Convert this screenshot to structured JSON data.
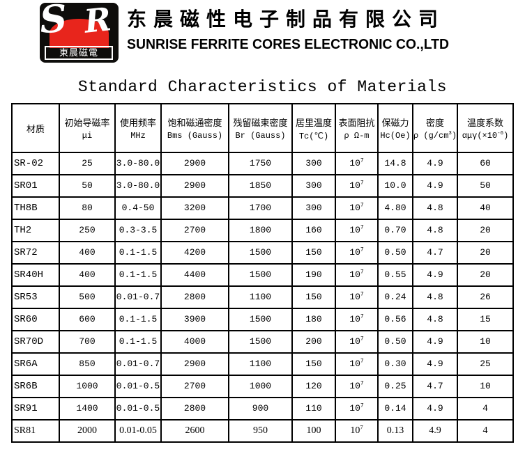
{
  "header": {
    "logo": {
      "letter_s": "S",
      "letter_r": "R",
      "caption": "東晨磁電",
      "background_color": "#0e0d0b",
      "dome_color": "#e8251c"
    },
    "company_zh": "东晨磁性电子制品有限公司",
    "company_en": "SUNRISE FERRITE CORES ELECTRONIC CO.,LTD"
  },
  "title": "Standard Characteristics of Materials",
  "table": {
    "columns": [
      {
        "zh": "材质",
        "unit": ""
      },
      {
        "zh": "初始导磁率",
        "unit": "μi"
      },
      {
        "zh": "使用频率",
        "unit": "MHz"
      },
      {
        "zh": "饱和磁通密度",
        "unit": "Bms (Gauss)"
      },
      {
        "zh": "残留磁束密度",
        "unit": "Br (Gauss)"
      },
      {
        "zh": "居里温度",
        "unit": "Tc(℃)"
      },
      {
        "zh": "表面阻抗",
        "unit": "ρ Ω-m"
      },
      {
        "zh": "保磁力",
        "unit": "Hc(Oe)"
      },
      {
        "zh": "密度",
        "unit": "ρ (g/cm^{3})"
      },
      {
        "zh": "温度系数",
        "unit": "αμγ(×10^{-6})"
      }
    ],
    "rows": [
      [
        "SR-02",
        "25",
        "3.0-80.0",
        "2900",
        "1750",
        "300",
        "10^{7}",
        "14.8",
        "4.9",
        "60"
      ],
      [
        "SR01",
        "50",
        "3.0-80.0",
        "2900",
        "1850",
        "300",
        "10^{7}",
        "10.0",
        "4.9",
        "50"
      ],
      [
        "TH8B",
        "80",
        "0.4-50",
        "3200",
        "1700",
        "300",
        "10^{7}",
        "4.80",
        "4.8",
        "40"
      ],
      [
        "TH2",
        "250",
        "0.3-3.5",
        "2700",
        "1800",
        "160",
        "10^{7}",
        "0.70",
        "4.8",
        "20"
      ],
      [
        "SR72",
        "400",
        "0.1-1.5",
        "4200",
        "1500",
        "150",
        "10^{7}",
        "0.50",
        "4.7",
        "20"
      ],
      [
        "SR40H",
        "400",
        "0.1-1.5",
        "4400",
        "1500",
        "190",
        "10^{7}",
        "0.55",
        "4.9",
        "20"
      ],
      [
        "SR53",
        "500",
        "0.01-0.7",
        "2800",
        "1100",
        "150",
        "10^{7}",
        "0.24",
        "4.8",
        "26"
      ],
      [
        "SR60",
        "600",
        "0.1-1.5",
        "3900",
        "1500",
        "180",
        "10^{7}",
        "0.56",
        "4.8",
        "15"
      ],
      [
        "SR70D",
        "700",
        "0.1-1.5",
        "4000",
        "1500",
        "200",
        "10^{7}",
        "0.50",
        "4.9",
        "10"
      ],
      [
        "SR6A",
        "850",
        "0.01-0.7",
        "2900",
        "1100",
        "150",
        "10^{7}",
        "0.30",
        "4.9",
        "25"
      ],
      [
        "SR6B",
        "1000",
        "0.01-0.5",
        "2700",
        "1000",
        "120",
        "10^{7}",
        "0.25",
        "4.7",
        "10"
      ],
      [
        "SR91",
        "1400",
        "0.01-0.5",
        "2800",
        "900",
        "110",
        "10^{7}",
        "0.14",
        "4.9",
        "4"
      ],
      [
        "SR81",
        "2000",
        "0.01-0.05",
        "2600",
        "950",
        "100",
        "10^{7}",
        "0.13",
        "4.9",
        "4"
      ]
    ]
  },
  "colors": {
    "text": "#000000",
    "logo_red": "#e8251c",
    "logo_black": "#0e0d0b",
    "border": "#000000"
  }
}
